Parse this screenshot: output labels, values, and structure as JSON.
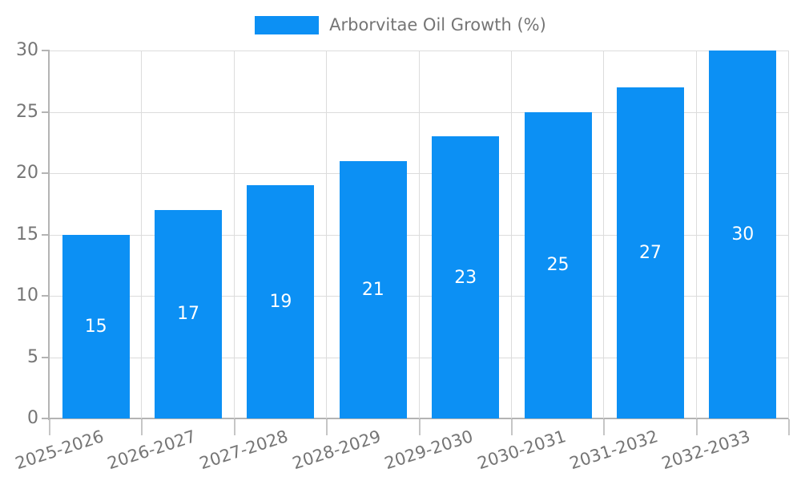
{
  "chart_data": {
    "type": "bar",
    "title": "",
    "legend_label": "Arborvitae Oil Growth (%)",
    "legend_position": "top-center",
    "categories": [
      "2025-2026",
      "2026-2027",
      "2027-2028",
      "2028-2029",
      "2029-2030",
      "2030-2031",
      "2031-2032",
      "2032-2033"
    ],
    "series": [
      {
        "name": "Arborvitae Oil Growth (%)",
        "values": [
          15,
          17,
          19,
          21,
          23,
          25,
          27,
          30
        ]
      }
    ],
    "value_labels": [
      "15",
      "17",
      "19",
      "21",
      "23",
      "25",
      "27",
      "30"
    ],
    "xlabel": "",
    "ylabel": "",
    "ylim": [
      0,
      30
    ],
    "yticks": [
      0,
      5,
      10,
      15,
      20,
      25,
      30
    ],
    "grid": true,
    "x_label_rotation_deg": -18,
    "colors": {
      "bar": "#0c90f4",
      "value_label": "#ffffff",
      "axis_text": "#757575",
      "grid_line": "#dcdcdc",
      "axis_line": "#b4b4b4",
      "tick_line": "#c6c6c6",
      "background": "#ffffff"
    }
  }
}
